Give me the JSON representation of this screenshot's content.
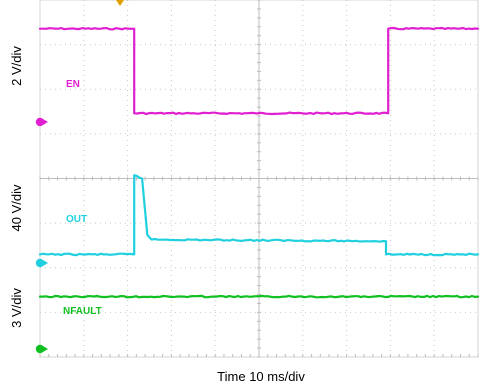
{
  "chart_data": {
    "type": "line",
    "xlabel": "Time 10 ms/div",
    "x_divisions": 10,
    "grid": true,
    "channels": [
      {
        "name": "EN",
        "scale_label": "2 V/div",
        "color": "#e020d0",
        "x": [
          0,
          2.15,
          2.15,
          7.95,
          7.95,
          10
        ],
        "y": [
          3.8,
          3.8,
          0.2,
          0.2,
          3.8,
          3.8
        ]
      },
      {
        "name": "OUT",
        "scale_label": "40 V/div",
        "color": "#20d0e0",
        "x": [
          0,
          2.15,
          2.15,
          2.33,
          2.45,
          2.55,
          7.9,
          7.9,
          10
        ],
        "y": [
          0.2,
          0.2,
          2.6,
          2.5,
          0.8,
          0.65,
          0.6,
          0.2,
          0.2
        ]
      },
      {
        "name": "NFAULT",
        "scale_label": "3 V/div",
        "color": "#10c020",
        "x": [
          0,
          10
        ],
        "y": [
          0.7,
          0.7
        ]
      }
    ]
  }
}
